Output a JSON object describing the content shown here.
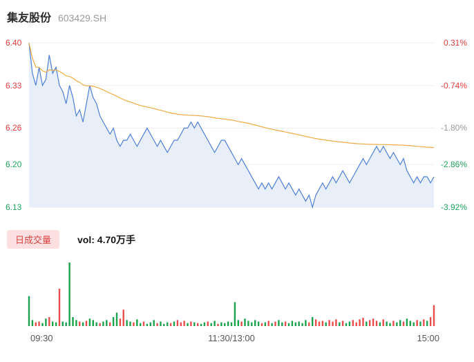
{
  "header": {
    "stock_name": "集友股份",
    "stock_code": "603429.SH"
  },
  "colors": {
    "up": "#e23b3b",
    "down": "#1fa35c",
    "neutral": "#999999",
    "price_line": "#4e7fd8",
    "price_fill": "#e8eff9",
    "avg_line": "#f0a942",
    "vol_up": "#e84c4c",
    "vol_down": "#1aa24c",
    "grid": "#ededed",
    "badge_bg": "#fbdfe1",
    "badge_text": "#d64541"
  },
  "volume_panel": {
    "legend": "日成交量",
    "vol_label": "vol: 4.70万手"
  },
  "chart_data": {
    "type": "line",
    "prev_close": 6.38,
    "ylim": [
      6.13,
      6.4
    ],
    "x_labels": [
      "09:30",
      "11:30/13:00",
      "15:00"
    ],
    "price_axis": [
      {
        "label": "6.40",
        "value": 6.4,
        "color": "#e23b3b"
      },
      {
        "label": "6.33",
        "value": 6.33,
        "color": "#e23b3b"
      },
      {
        "label": "6.26",
        "value": 6.26,
        "color": "#e23b3b"
      },
      {
        "label": "6.20",
        "value": 6.2,
        "color": "#1fa35c"
      },
      {
        "label": "6.13",
        "value": 6.13,
        "color": "#1fa35c"
      }
    ],
    "percent_axis": [
      {
        "label": "0.31%",
        "color": "#e23b3b"
      },
      {
        "label": "-0.74%",
        "color": "#e23b3b"
      },
      {
        "label": "-1.80%",
        "color": "#999999"
      },
      {
        "label": "-2.86%",
        "color": "#1fa35c"
      },
      {
        "label": "-3.92%",
        "color": "#1fa35c"
      }
    ],
    "series": [
      {
        "name": "price",
        "values": [
          6.4,
          6.35,
          6.33,
          6.36,
          6.33,
          6.34,
          6.38,
          6.35,
          6.36,
          6.33,
          6.32,
          6.3,
          6.33,
          6.31,
          6.28,
          6.29,
          6.27,
          6.3,
          6.33,
          6.31,
          6.3,
          6.28,
          6.27,
          6.26,
          6.25,
          6.26,
          6.24,
          6.23,
          6.24,
          6.24,
          6.25,
          6.24,
          6.23,
          6.24,
          6.25,
          6.26,
          6.25,
          6.24,
          6.23,
          6.24,
          6.23,
          6.22,
          6.23,
          6.24,
          6.24,
          6.25,
          6.26,
          6.26,
          6.27,
          6.26,
          6.27,
          6.26,
          6.25,
          6.24,
          6.23,
          6.22,
          6.23,
          6.24,
          6.24,
          6.23,
          6.22,
          6.21,
          6.2,
          6.21,
          6.2,
          6.19,
          6.18,
          6.17,
          6.16,
          6.17,
          6.16,
          6.17,
          6.16,
          6.17,
          6.18,
          6.17,
          6.16,
          6.17,
          6.16,
          6.15,
          6.16,
          6.15,
          6.14,
          6.15,
          6.13,
          6.15,
          6.16,
          6.17,
          6.16,
          6.17,
          6.18,
          6.17,
          6.18,
          6.19,
          6.18,
          6.17,
          6.18,
          6.19,
          6.2,
          6.21,
          6.2,
          6.21,
          6.22,
          6.23,
          6.22,
          6.23,
          6.22,
          6.21,
          6.22,
          6.21,
          6.2,
          6.21,
          6.19,
          6.18,
          6.17,
          6.18,
          6.17,
          6.18,
          6.18,
          6.17,
          6.18
        ]
      },
      {
        "name": "avg",
        "derived_from": "cumulative mean of price series"
      }
    ],
    "volume_values": [
      40,
      8,
      5,
      6,
      4,
      10,
      12,
      6,
      5,
      50,
      6,
      5,
      85,
      12,
      8,
      6,
      5,
      7,
      10,
      8,
      5,
      4,
      6,
      8,
      5,
      12,
      18,
      10,
      22,
      8,
      6,
      5,
      9,
      4,
      6,
      3,
      5,
      8,
      4,
      6,
      3,
      5,
      4,
      6,
      8,
      5,
      7,
      4,
      6,
      5,
      4,
      3,
      5,
      6,
      4,
      7,
      3,
      5,
      4,
      6,
      5,
      32,
      8,
      6,
      10,
      7,
      5,
      8,
      6,
      4,
      5,
      7,
      4,
      6,
      8,
      5,
      6,
      4,
      7,
      5,
      6,
      4,
      8,
      5,
      12,
      9,
      6,
      7,
      5,
      8,
      6,
      9,
      5,
      7,
      4,
      6,
      8,
      5,
      9,
      11,
      6,
      8,
      10,
      7,
      5,
      9,
      6,
      4,
      7,
      5,
      8,
      6,
      10,
      7,
      5,
      8,
      6,
      9,
      7,
      12,
      28
    ],
    "volume_dirs": [
      "dduudduddu",
      "dddddududd",
      "duddudduud",
      "duddudddud",
      "dduduuudud",
      "uddudduddd",
      "dddudddddu",
      "dududduddd",
      "ddduduuudu",
      "uududduuuu",
      "duuududdud",
      "dudddududuu"
    ]
  }
}
